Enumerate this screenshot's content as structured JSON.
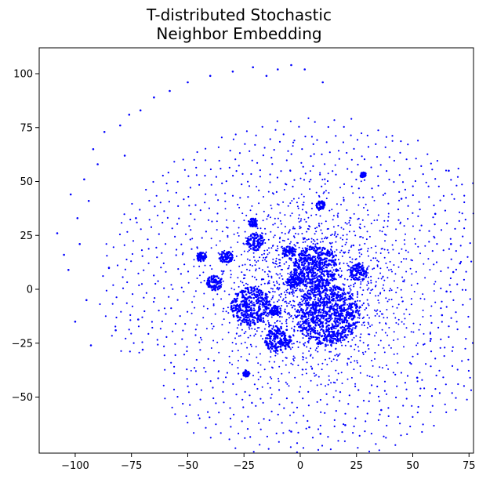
{
  "chart_data": {
    "type": "scatter",
    "title_lines": [
      "T-distributed Stochastic",
      "Neighbor Embedding"
    ],
    "xlabel": "",
    "ylabel": "",
    "xlim": [
      -116,
      77
    ],
    "ylim": [
      -76,
      112
    ],
    "xticks": [
      -100,
      -75,
      -50,
      -25,
      0,
      25,
      50,
      75
    ],
    "xtick_labels": [
      "−100",
      "−75",
      "−50",
      "−25",
      "0",
      "25",
      "50",
      "75"
    ],
    "yticks": [
      -50,
      -25,
      0,
      25,
      50,
      75,
      100
    ],
    "yticks_labels": [
      "−50",
      "−25",
      "0",
      "25",
      "50",
      "75",
      "100"
    ],
    "marker_color": "#0000ff",
    "grid": false,
    "legend": "none",
    "dense_clusters": [
      {
        "x": 7,
        "y": 10,
        "r": 10
      },
      {
        "x": 12,
        "y": -12,
        "r": 14
      },
      {
        "x": -22,
        "y": -8,
        "r": 9
      },
      {
        "x": -10,
        "y": -23,
        "r": 6
      },
      {
        "x": 26,
        "y": 8,
        "r": 4
      },
      {
        "x": -20,
        "y": 22,
        "r": 4
      },
      {
        "x": -33,
        "y": 15,
        "r": 3
      },
      {
        "x": -38,
        "y": 3,
        "r": 3.5
      },
      {
        "x": -5,
        "y": 17,
        "r": 3
      },
      {
        "x": 9,
        "y": 39,
        "r": 2
      },
      {
        "x": -44,
        "y": 15,
        "r": 2.2
      },
      {
        "x": -21,
        "y": 31,
        "r": 2
      },
      {
        "x": -3,
        "y": 4,
        "r": 3
      },
      {
        "x": -11,
        "y": -10,
        "r": 2.5
      },
      {
        "x": -24,
        "y": -39,
        "r": 1.5
      },
      {
        "x": 28,
        "y": 53,
        "r": 1.3
      }
    ],
    "outlier_points": [
      [
        -108,
        26
      ],
      [
        -105,
        16
      ],
      [
        -103,
        9
      ],
      [
        -102,
        44
      ],
      [
        -100,
        -15
      ],
      [
        -99,
        33
      ],
      [
        -98,
        21
      ],
      [
        -96,
        51
      ],
      [
        -95,
        -5
      ],
      [
        -94,
        41
      ],
      [
        -93,
        -26
      ],
      [
        -92,
        65
      ],
      [
        -90,
        58
      ],
      [
        -87,
        73
      ],
      [
        -85,
        10
      ],
      [
        -82,
        -19
      ],
      [
        -80,
        76
      ],
      [
        -78,
        62
      ],
      [
        -76,
        81
      ],
      [
        -73,
        33
      ],
      [
        -72,
        -14
      ],
      [
        -71,
        83
      ],
      [
        -70,
        -28
      ],
      [
        -65,
        89
      ],
      [
        -58,
        92
      ],
      [
        -50,
        96
      ],
      [
        -40,
        99
      ],
      [
        -30,
        101
      ],
      [
        -21,
        103
      ],
      [
        -15,
        99
      ],
      [
        -10,
        102
      ],
      [
        -4,
        104
      ],
      [
        2,
        102
      ],
      [
        10,
        96
      ],
      [
        -4,
        -66
      ],
      [
        4,
        -64
      ],
      [
        9,
        -67
      ],
      [
        20,
        -63
      ],
      [
        36,
        -56
      ],
      [
        66,
        55
      ],
      [
        67,
        21
      ],
      [
        68,
        8
      ],
      [
        65,
        -1
      ],
      [
        63,
        -12
      ],
      [
        58,
        -23
      ],
      [
        52,
        -41
      ],
      [
        60,
        35
      ],
      [
        45,
        42
      ],
      [
        71,
        12
      ]
    ]
  }
}
